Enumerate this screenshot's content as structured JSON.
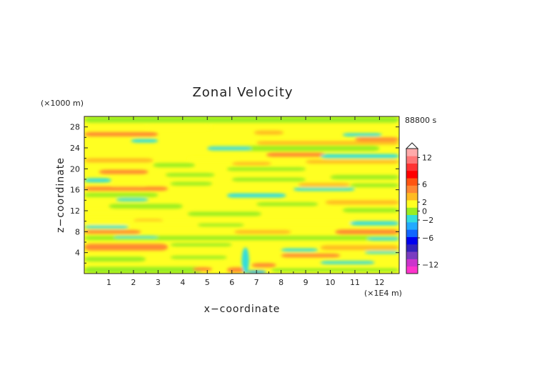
{
  "chart_data": {
    "type": "heatmap",
    "title": "Zonal Velocity",
    "xlabel": "x−coordinate",
    "ylabel": "z−coordinate",
    "x_unit": "(×1E4 m)",
    "y_unit": "(×1000 m)",
    "time_label": "88800 s",
    "xlim": [
      0,
      12.8
    ],
    "ylim": [
      0,
      30
    ],
    "x_ticks": [
      1,
      2,
      3,
      4,
      5,
      6,
      7,
      8,
      9,
      10,
      11,
      12
    ],
    "y_ticks": [
      4,
      8,
      12,
      16,
      20,
      24,
      28
    ],
    "x_tick_labels": [
      "1",
      "2",
      "3",
      "4",
      "5",
      "6",
      "7",
      "8",
      "9",
      "10",
      "11",
      "12"
    ],
    "y_tick_labels": [
      "4",
      "8",
      "12",
      "16",
      "20",
      "24",
      "28"
    ],
    "colorbar": {
      "range": [
        -14,
        14
      ],
      "ticks": [
        12,
        6,
        2,
        0,
        -2,
        -6,
        -12
      ],
      "tick_labels": [
        "12",
        "6",
        "2",
        "0",
        "−2",
        "−6",
        "−12"
      ],
      "colors": [
        "#ff33cc",
        "#cc33cc",
        "#7a3cc0",
        "#3322bb",
        "#0000ee",
        "#1166ff",
        "#22aaff",
        "#33dddd",
        "#99ee22",
        "#ffff22",
        "#ffbb22",
        "#ff8833",
        "#ff5511",
        "#ff0000",
        "#ff3333",
        "#ff7777",
        "#ffaaaa"
      ]
    },
    "colors": {
      "neutral": "#ffff22",
      "slightly_negative": "#99ee22",
      "negative": "#33dddd",
      "positive": "#ffbb22",
      "strong_positive": "#ff8833",
      "strong_negative": "#22aaff"
    },
    "bands": [
      {
        "x": [
          0.0,
          12.8
        ],
        "z": [
          28.8,
          30.0
        ],
        "v": -0.5
      },
      {
        "x": [
          0.0,
          3.0
        ],
        "z": [
          26.2,
          27.0
        ],
        "v": 2.5
      },
      {
        "x": [
          1.9,
          3.0
        ],
        "z": [
          25.0,
          25.7
        ],
        "v": -1.5
      },
      {
        "x": [
          2.5,
          5.2
        ],
        "z": [
          27.5,
          28.2
        ],
        "v": 0.5
      },
      {
        "x": [
          6.9,
          8.1
        ],
        "z": [
          26.5,
          27.3
        ],
        "v": 2.0
      },
      {
        "x": [
          10.5,
          12.1
        ],
        "z": [
          26.2,
          26.8
        ],
        "v": -1.5
      },
      {
        "x": [
          11.0,
          12.8
        ],
        "z": [
          25.3,
          26.0
        ],
        "v": 3.0
      },
      {
        "x": [
          7.0,
          12.8
        ],
        "z": [
          24.6,
          25.3
        ],
        "v": 1.0
      },
      {
        "x": [
          5.0,
          12.0
        ],
        "z": [
          23.4,
          24.4
        ],
        "v": -0.5
      },
      {
        "x": [
          5.0,
          6.8
        ],
        "z": [
          23.6,
          24.2
        ],
        "v": -1.5
      },
      {
        "x": [
          7.4,
          9.8
        ],
        "z": [
          22.3,
          23.1
        ],
        "v": 3.0
      },
      {
        "x": [
          9.6,
          12.8
        ],
        "z": [
          22.0,
          22.8
        ],
        "v": -1.5
      },
      {
        "x": [
          0.0,
          2.8
        ],
        "z": [
          21.2,
          22.0
        ],
        "v": 1.0
      },
      {
        "x": [
          2.8,
          4.5
        ],
        "z": [
          20.3,
          21.1
        ],
        "v": -0.5
      },
      {
        "x": [
          9.0,
          12.8
        ],
        "z": [
          21.0,
          21.7
        ],
        "v": 1.0
      },
      {
        "x": [
          4.2,
          6.3
        ],
        "z": [
          21.5,
          22.2
        ],
        "v": 0.5
      },
      {
        "x": [
          6.0,
          7.6
        ],
        "z": [
          20.7,
          21.3
        ],
        "v": 2.0
      },
      {
        "x": [
          0.6,
          2.6
        ],
        "z": [
          19.0,
          19.8
        ],
        "v": 2.5
      },
      {
        "x": [
          3.3,
          5.3
        ],
        "z": [
          18.5,
          19.2
        ],
        "v": -0.5
      },
      {
        "x": [
          5.8,
          9.0
        ],
        "z": [
          19.6,
          20.3
        ],
        "v": -0.5
      },
      {
        "x": [
          10.0,
          12.8
        ],
        "z": [
          18.0,
          18.8
        ],
        "v": -0.5
      },
      {
        "x": [
          0.0,
          1.1
        ],
        "z": [
          17.4,
          18.2
        ],
        "v": -1.0
      },
      {
        "x": [
          1.1,
          2.5
        ],
        "z": [
          16.6,
          17.2
        ],
        "v": 0.5
      },
      {
        "x": [
          6.0,
          9.0
        ],
        "z": [
          17.6,
          18.3
        ],
        "v": -0.5
      },
      {
        "x": [
          0.0,
          3.4
        ],
        "z": [
          15.8,
          16.6
        ],
        "v": 3.0
      },
      {
        "x": [
          3.5,
          5.2
        ],
        "z": [
          16.8,
          17.5
        ],
        "v": -0.5
      },
      {
        "x": [
          8.7,
          10.8
        ],
        "z": [
          16.6,
          17.3
        ],
        "v": 2.0
      },
      {
        "x": [
          8.5,
          11.0
        ],
        "z": [
          15.8,
          16.4
        ],
        "v": -1.5
      },
      {
        "x": [
          10.8,
          12.8
        ],
        "z": [
          16.5,
          17.2
        ],
        "v": -0.5
      },
      {
        "x": [
          0.0,
          3.0
        ],
        "z": [
          14.6,
          15.4
        ],
        "v": -0.5
      },
      {
        "x": [
          5.8,
          8.2
        ],
        "z": [
          14.5,
          15.3
        ],
        "v": -1.5
      },
      {
        "x": [
          1.0,
          4.0
        ],
        "z": [
          12.4,
          13.3
        ],
        "v": -0.5
      },
      {
        "x": [
          1.3,
          2.6
        ],
        "z": [
          13.8,
          14.4
        ],
        "v": -1.5
      },
      {
        "x": [
          7.0,
          9.5
        ],
        "z": [
          12.9,
          13.6
        ],
        "v": -0.5
      },
      {
        "x": [
          9.8,
          12.8
        ],
        "z": [
          13.2,
          14.0
        ],
        "v": 1.0
      },
      {
        "x": [
          0.0,
          2.2
        ],
        "z": [
          11.5,
          12.2
        ],
        "v": 0.5
      },
      {
        "x": [
          4.2,
          7.2
        ],
        "z": [
          11.0,
          11.8
        ],
        "v": -0.5
      },
      {
        "x": [
          10.5,
          12.8
        ],
        "z": [
          11.7,
          12.5
        ],
        "v": -0.5
      },
      {
        "x": [
          2.0,
          3.2
        ],
        "z": [
          9.8,
          10.4
        ],
        "v": 2.0
      },
      {
        "x": [
          0.0,
          12.8
        ],
        "z": [
          9.4,
          10.0
        ],
        "v": 0.5
      },
      {
        "x": [
          0.0,
          1.8
        ],
        "z": [
          8.6,
          9.2
        ],
        "v": -1.0
      },
      {
        "x": [
          4.6,
          6.5
        ],
        "z": [
          9.0,
          9.6
        ],
        "v": -0.5
      },
      {
        "x": [
          10.8,
          12.8
        ],
        "z": [
          9.2,
          10.0
        ],
        "v": -1.0
      },
      {
        "x": [
          0.0,
          2.3
        ],
        "z": [
          7.6,
          8.3
        ],
        "v": 2.5
      },
      {
        "x": [
          6.1,
          8.4
        ],
        "z": [
          7.6,
          8.3
        ],
        "v": 2.0
      },
      {
        "x": [
          10.2,
          12.8
        ],
        "z": [
          7.5,
          8.4
        ],
        "v": 2.5
      },
      {
        "x": [
          0.0,
          12.8
        ],
        "z": [
          6.4,
          7.2
        ],
        "v": -0.5
      },
      {
        "x": [
          1.2,
          3.0
        ],
        "z": [
          6.8,
          7.2
        ],
        "v": -1.0
      },
      {
        "x": [
          11.5,
          12.8
        ],
        "z": [
          6.3,
          6.9
        ],
        "v": -1.5
      },
      {
        "x": [
          0.0,
          3.4
        ],
        "z": [
          4.4,
          5.7
        ],
        "v": 3.0
      },
      {
        "x": [
          3.5,
          6.0
        ],
        "z": [
          5.2,
          5.8
        ],
        "v": -0.5
      },
      {
        "x": [
          9.6,
          12.8
        ],
        "z": [
          4.5,
          5.4
        ],
        "v": 2.0
      },
      {
        "x": [
          8.0,
          9.5
        ],
        "z": [
          4.2,
          4.8
        ],
        "v": -1.0
      },
      {
        "x": [
          11.4,
          12.8
        ],
        "z": [
          3.8,
          4.3
        ],
        "v": -1.0
      },
      {
        "x": [
          0.0,
          2.5
        ],
        "z": [
          2.3,
          3.2
        ],
        "v": -0.5
      },
      {
        "x": [
          3.5,
          5.8
        ],
        "z": [
          2.8,
          3.4
        ],
        "v": -0.5
      },
      {
        "x": [
          8.0,
          10.4
        ],
        "z": [
          3.1,
          3.8
        ],
        "v": 2.5
      },
      {
        "x": [
          0.0,
          4.8
        ],
        "z": [
          0.0,
          1.3
        ],
        "v": -0.5
      },
      {
        "x": [
          4.4,
          5.2
        ],
        "z": [
          0.5,
          1.2
        ],
        "v": 3.0
      },
      {
        "x": [
          5.8,
          6.6
        ],
        "z": [
          0.2,
          1.2
        ],
        "v": 3.0
      },
      {
        "x": [
          6.4,
          6.7
        ],
        "z": [
          0.0,
          5.0
        ],
        "v": -1.5
      },
      {
        "x": [
          6.8,
          7.8
        ],
        "z": [
          1.2,
          2.0
        ],
        "v": 3.0
      },
      {
        "x": [
          6.6,
          7.4
        ],
        "z": [
          0.0,
          0.6
        ],
        "v": -2.5
      },
      {
        "x": [
          7.6,
          12.8
        ],
        "z": [
          0.3,
          1.0
        ],
        "v": -0.5
      },
      {
        "x": [
          9.6,
          11.8
        ],
        "z": [
          1.8,
          2.4
        ],
        "v": -1.5
      }
    ]
  }
}
